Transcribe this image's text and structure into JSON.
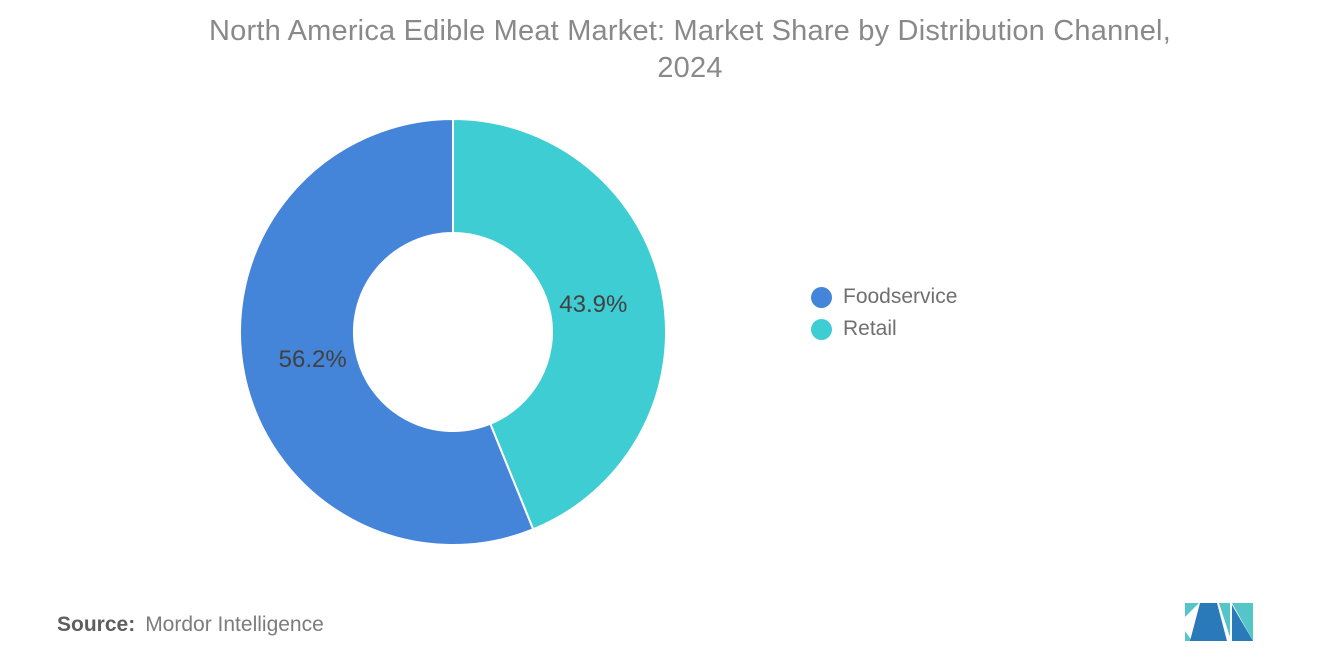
{
  "title": {
    "line1": "North America Edible Meat Market: Market Share by Distribution Channel,",
    "line2": "2024"
  },
  "chart_data": {
    "type": "pie",
    "title": "North America Edible Meat Market: Market Share by Distribution Channel, 2024",
    "donut": true,
    "start_angle_deg": 0,
    "direction": "clockwise",
    "segments": [
      {
        "label": "Retail",
        "value": 43.9,
        "data_label": "43.9%",
        "color": "#3ecdd3"
      },
      {
        "label": "Foodservice",
        "value": 56.2,
        "data_label": "56.2%",
        "color": "#4484d9"
      }
    ],
    "legend_position": "right",
    "legend_order": [
      "Foodservice",
      "Retail"
    ]
  },
  "legend": {
    "items": [
      {
        "label": "Foodservice",
        "color": "#4484d9"
      },
      {
        "label": "Retail",
        "color": "#3ecdd3"
      }
    ]
  },
  "source": {
    "label": "Source:",
    "text": "Mordor Intelligence"
  },
  "logo": {
    "name": "mordor-intelligence-logo",
    "blue": "#2a79b8",
    "teal": "#55c6c8"
  }
}
